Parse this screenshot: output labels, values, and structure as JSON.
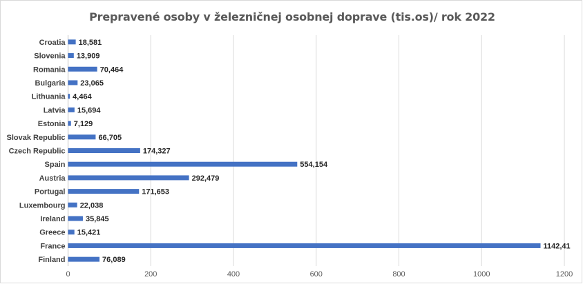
{
  "chart_data": {
    "type": "bar",
    "orientation": "horizontal",
    "title": "Prepravené osoby v železničnej osobnej doprave (tis.os)/ rok 2022",
    "xlabel": "",
    "ylabel": "",
    "xlim": [
      0,
      1200
    ],
    "x_ticks": [
      "0",
      "200",
      "400",
      "600",
      "800",
      "1000",
      "1200"
    ],
    "grid": "vertical",
    "legend": "none",
    "bar_color": "#4472C4",
    "categories": [
      "Croatia",
      "Slovenia",
      "Romania",
      "Bulgaria",
      "Lithuania",
      "Latvia",
      "Estonia",
      "Slovak Republic",
      "Czech Republic",
      "Spain",
      "Austria",
      "Portugal",
      "Luxembourg",
      "Ireland",
      "Greece",
      "France",
      "Finland"
    ],
    "values": [
      18.581,
      13.909,
      70.464,
      23.065,
      4.464,
      15.694,
      7.129,
      66.705,
      174.327,
      554.154,
      292.479,
      171.653,
      22.038,
      35.845,
      15.421,
      1142.41,
      76.089
    ],
    "data_labels": [
      "18,581",
      "13,909",
      "70,464",
      "23,065",
      "4,464",
      "15,694",
      "7,129",
      "66,705",
      "174,327",
      "554,154",
      "292,479",
      "171,653",
      "22,038",
      "35,845",
      "15,421",
      "1142,41",
      "76,089"
    ]
  }
}
